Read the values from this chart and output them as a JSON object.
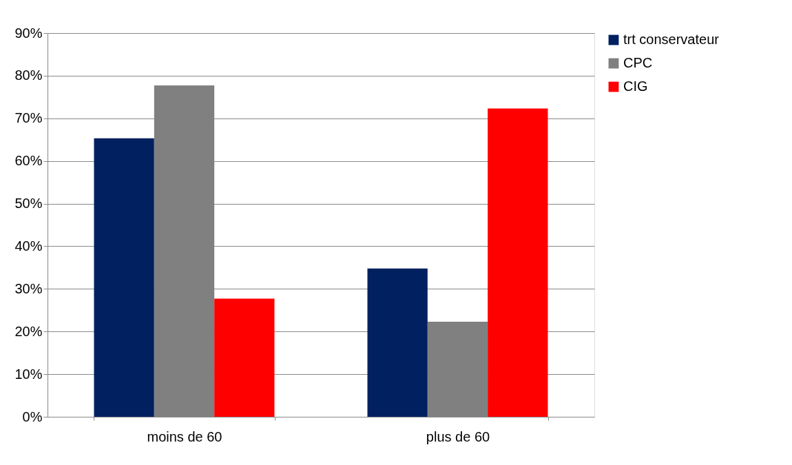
{
  "chart_data": {
    "type": "bar",
    "categories": [
      "moins de 60",
      "plus de 60"
    ],
    "series": [
      {
        "name": "trt conservateur",
        "color": "#002060",
        "values": [
          65.3,
          34.8
        ]
      },
      {
        "name": "CPC",
        "color": "#808080",
        "values": [
          77.7,
          22.3
        ]
      },
      {
        "name": "CIG",
        "color": "#ff0000",
        "values": [
          27.7,
          72.3
        ]
      }
    ],
    "ylim": [
      0,
      90
    ],
    "yticks": [
      {
        "value": 0,
        "label": "0%"
      },
      {
        "value": 10,
        "label": "10%"
      },
      {
        "value": 20,
        "label": "20%"
      },
      {
        "value": 30,
        "label": "30%"
      },
      {
        "value": 40,
        "label": "40%"
      },
      {
        "value": 50,
        "label": "50%"
      },
      {
        "value": 60,
        "label": "60%"
      },
      {
        "value": 70,
        "label": "70%"
      },
      {
        "value": 80,
        "label": "80%"
      },
      {
        "value": 90,
        "label": "90%"
      }
    ],
    "grid": "y",
    "legend": "right"
  }
}
